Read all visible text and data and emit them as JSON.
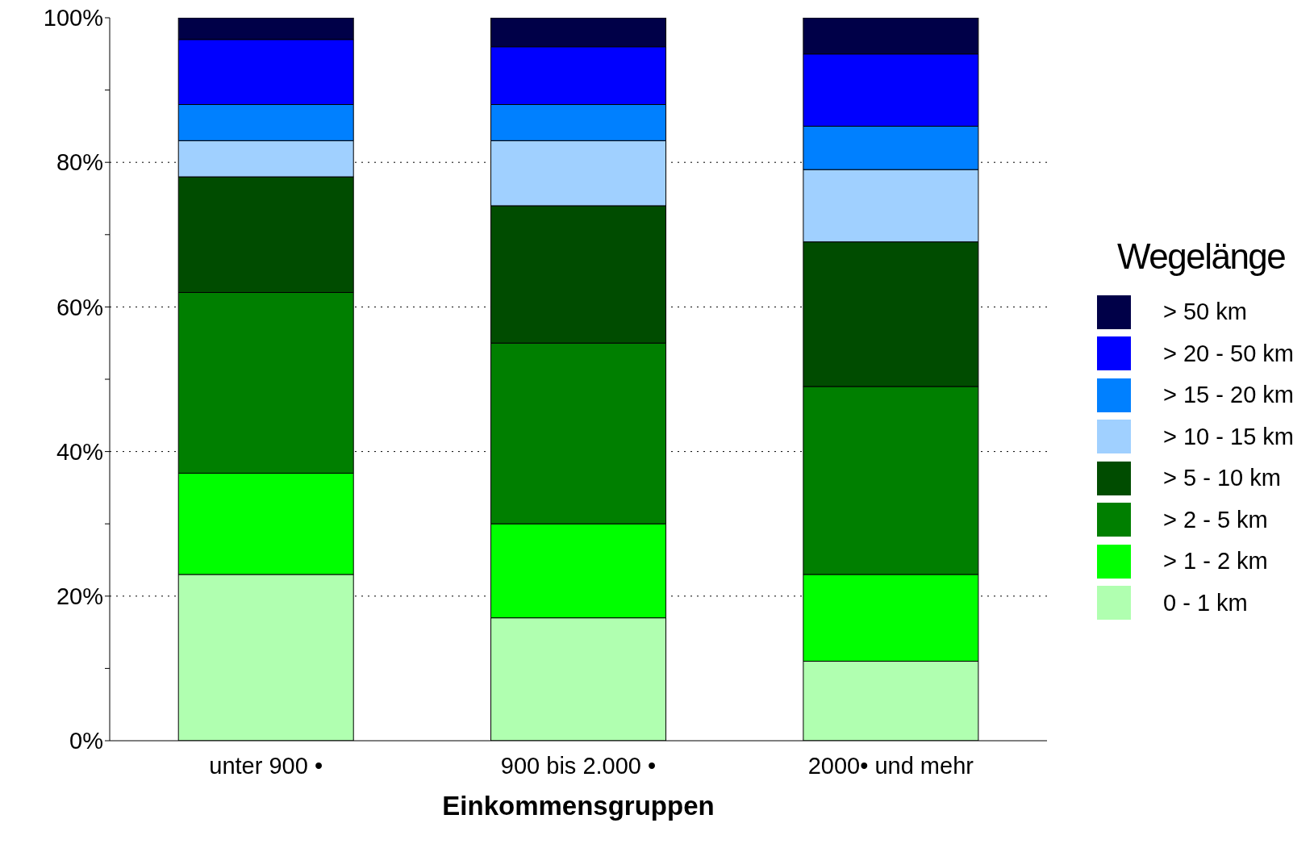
{
  "chart_data": {
    "type": "bar",
    "stacked": true,
    "xlabel": "Einkommensgruppen",
    "legend_title": "Wegelänge",
    "categories": [
      "unter 900 •",
      "900 bis 2.000 •",
      "2000•  und mehr"
    ],
    "series": [
      {
        "name": "0 - 1 km",
        "color": "#b0ffb0",
        "values": [
          23,
          17,
          11
        ]
      },
      {
        "name": "> 1 - 2 km",
        "color": "#00ff00",
        "values": [
          14,
          13,
          12
        ]
      },
      {
        "name": "> 2 - 5 km",
        "color": "#007f00",
        "values": [
          25,
          25,
          26
        ]
      },
      {
        "name": "> 5 - 10 km",
        "color": "#004c00",
        "values": [
          16,
          19,
          20
        ]
      },
      {
        "name": "> 10 - 15 km",
        "color": "#a0d0ff",
        "values": [
          5,
          9,
          10
        ]
      },
      {
        "name": "> 15 - 20 km",
        "color": "#0080ff",
        "values": [
          5,
          5,
          6
        ]
      },
      {
        "name": "> 20 - 50 km",
        "color": "#0000ff",
        "values": [
          9,
          8,
          10
        ]
      },
      {
        "name": "> 50 km",
        "color": "#000048",
        "values": [
          3,
          4,
          5
        ]
      }
    ],
    "ylim": [
      0,
      100
    ],
    "yticks": [
      {
        "value": 0,
        "label": "0%"
      },
      {
        "value": 10,
        "label": null
      },
      {
        "value": 20,
        "label": "20%"
      },
      {
        "value": 30,
        "label": null
      },
      {
        "value": 40,
        "label": "40%"
      },
      {
        "value": 50,
        "label": null
      },
      {
        "value": 60,
        "label": "60%"
      },
      {
        "value": 70,
        "label": null
      },
      {
        "value": 80,
        "label": "80%"
      },
      {
        "value": 90,
        "label": null
      },
      {
        "value": 100,
        "label": "100%"
      }
    ],
    "grid": "y",
    "legend": "right"
  }
}
